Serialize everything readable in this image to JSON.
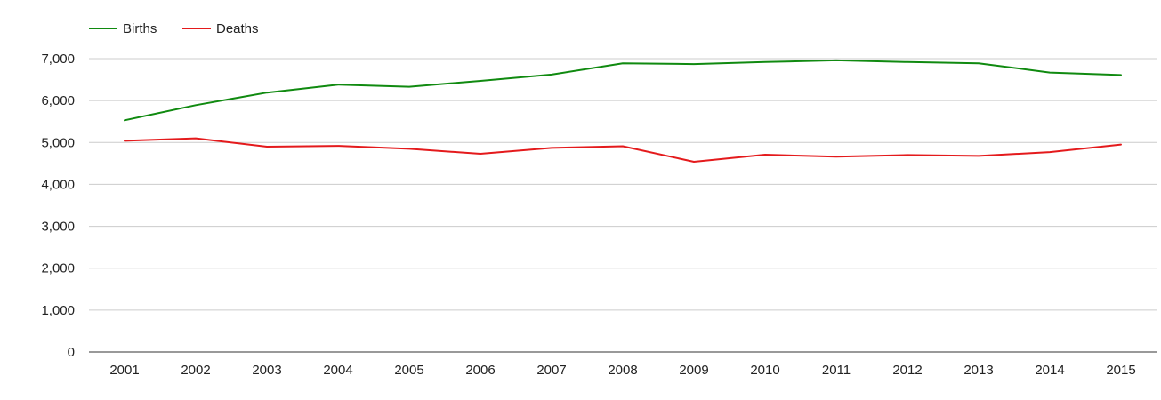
{
  "chart_data": {
    "type": "line",
    "title": "",
    "xlabel": "",
    "ylabel": "",
    "x": [
      "2001",
      "2002",
      "2003",
      "2004",
      "2005",
      "2006",
      "2007",
      "2008",
      "2009",
      "2010",
      "2011",
      "2012",
      "2013",
      "2014",
      "2015"
    ],
    "ylim": [
      0,
      7000
    ],
    "yticks": [
      0,
      1000,
      2000,
      3000,
      4000,
      5000,
      6000,
      7000
    ],
    "ytick_labels": [
      "0",
      "1,000",
      "2,000",
      "3,000",
      "4,000",
      "5,000",
      "6,000",
      "7,000"
    ],
    "grid": true,
    "legend_position": "top-left",
    "series": [
      {
        "name": "Births",
        "color": "#108a10",
        "values": [
          5530,
          5890,
          6190,
          6380,
          6330,
          6470,
          6620,
          6890,
          6870,
          6920,
          6960,
          6920,
          6890,
          6670,
          6610
        ]
      },
      {
        "name": "Deaths",
        "color": "#e41a1c",
        "values": [
          5040,
          5100,
          4900,
          4920,
          4850,
          4730,
          4870,
          4910,
          4540,
          4710,
          4660,
          4700,
          4680,
          4770,
          4950
        ]
      }
    ]
  }
}
